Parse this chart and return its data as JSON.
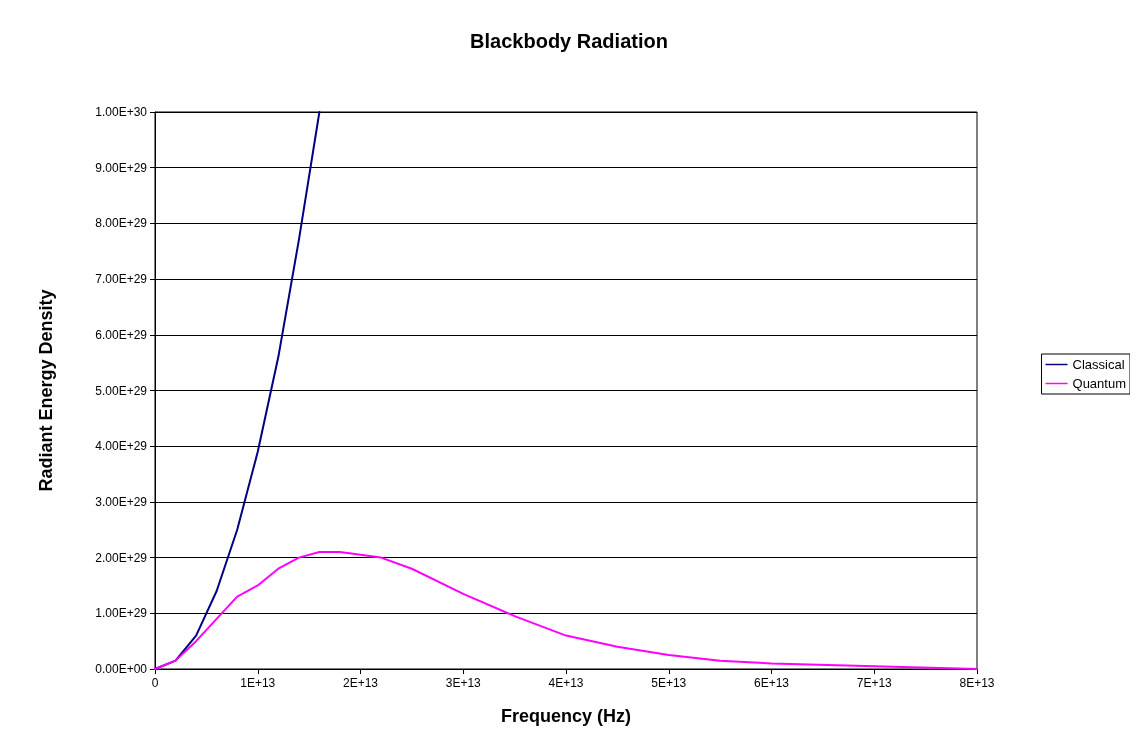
{
  "chart_data": {
    "type": "line",
    "title": "Blackbody Radiation",
    "xlabel": "Frequency (Hz)",
    "ylabel": "Radiant Energy Density",
    "xlim": [
      0,
      80000000000000.0
    ],
    "xticks": [
      0,
      {
        "value": 10000000000000.0,
        "label": "1E+13"
      },
      {
        "value": 20000000000000.0,
        "label": "2E+13"
      },
      {
        "value": 30000000000000.0,
        "label": "3E+13"
      },
      {
        "value": 40000000000000.0,
        "label": "4E+13"
      },
      {
        "value": 50000000000000.0,
        "label": "5E+13"
      },
      {
        "value": 60000000000000.0,
        "label": "6E+13"
      },
      {
        "value": 70000000000000.0,
        "label": "7E+13"
      },
      {
        "value": 80000000000000.0,
        "label": "8E+13"
      }
    ],
    "ylim": [
      0,
      1e+30
    ],
    "yticks": [
      {
        "value": 0,
        "label": "0.00E+00"
      },
      {
        "value": 1e+29,
        "label": "1.00E+29"
      },
      {
        "value": 2e+29,
        "label": "2.00E+29"
      },
      {
        "value": 3e+29,
        "label": "3.00E+29"
      },
      {
        "value": 4e+29,
        "label": "4.00E+29"
      },
      {
        "value": 5e+29,
        "label": "5.00E+29"
      },
      {
        "value": 6e+29,
        "label": "6.00E+29"
      },
      {
        "value": 7e+29,
        "label": "7.00E+29"
      },
      {
        "value": 8e+29,
        "label": "8.00E+29"
      },
      {
        "value": 9e+29,
        "label": "9.00E+29"
      },
      {
        "value": 1e+30,
        "label": "1.00E+30"
      }
    ],
    "grid": "y",
    "legend": "right",
    "marker": "none",
    "line_style": "solid",
    "series": [
      {
        "name": "Classical",
        "color": "#000080",
        "x": [
          0,
          2000000000000.0,
          4000000000000.0,
          6000000000000.0,
          8000000000000.0,
          10000000000000.0,
          12000000000000.0,
          14000000000000.0,
          16000000000000.0
        ],
        "values": [
          0,
          1.5e+28,
          6e+28,
          1.4e+29,
          2.5e+29,
          3.9e+29,
          5.6e+29,
          7.7e+29,
          1e+30
        ]
      },
      {
        "name": "Quantum",
        "color": "#ff00ff",
        "x": [
          0,
          2000000000000.0,
          4000000000000.0,
          6000000000000.0,
          8000000000000.0,
          10000000000000.0,
          12000000000000.0,
          14000000000000.0,
          16000000000000.0,
          18000000000000.0,
          20000000000000.0,
          22000000000000.0,
          25000000000000.0,
          30000000000000.0,
          35000000000000.0,
          40000000000000.0,
          45000000000000.0,
          50000000000000.0,
          55000000000000.0,
          60000000000000.0,
          70000000000000.0,
          80000000000000.0
        ],
        "values": [
          0,
          1.5e+28,
          5e+28,
          9e+28,
          1.3e+29,
          1.5e+29,
          1.8e+29,
          2e+29,
          2.1e+29,
          2.1e+29,
          2.05e+29,
          2e+29,
          1.8e+29,
          1.35e+29,
          9.5e+28,
          6e+28,
          4e+28,
          2.5e+28,
          1.5e+28,
          1e+28,
          5e+27,
          0
        ]
      }
    ]
  }
}
